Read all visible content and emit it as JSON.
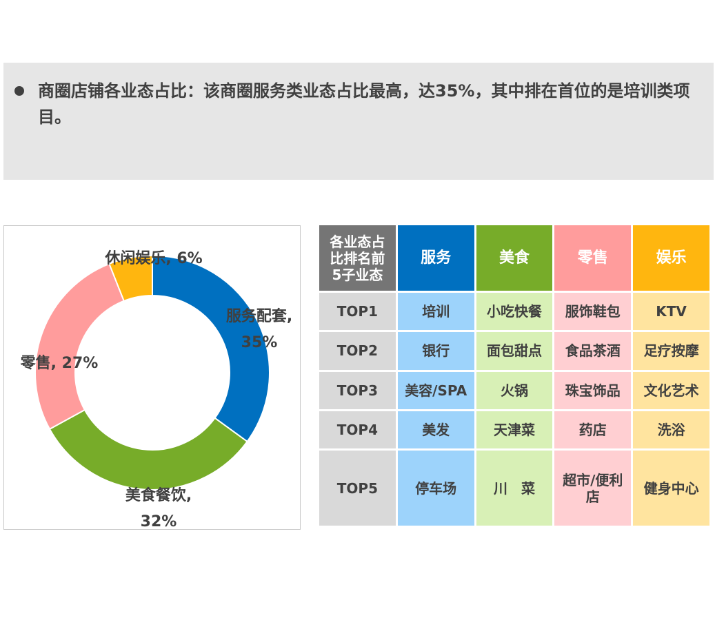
{
  "summary": {
    "text": "商圈店铺各业态占比：该商圈服务类业态占比最高，达35%，其中排在首位的是培训类项目。"
  },
  "chart_data": {
    "type": "pie",
    "donut": true,
    "slices": [
      {
        "name": "服务配套",
        "value": 35,
        "color": "#0070c0",
        "label_line1": "服务配套,",
        "label_line2": "35%"
      },
      {
        "name": "美食餐饮",
        "value": 32,
        "color": "#77ac29",
        "label_line1": "美食餐饮,",
        "label_line2": "32%"
      },
      {
        "name": "零售",
        "value": 27,
        "color": "#ff9c9c",
        "label_line1": "零售, 27%",
        "label_line2": ""
      },
      {
        "name": "休闲娱乐",
        "value": 6,
        "color": "#ffb60f",
        "label_line1": "休闲娱乐, 6%",
        "label_line2": ""
      }
    ]
  },
  "table": {
    "corner_header": "各业态占比排名前5子业态",
    "corner_lines": [
      "各业态占",
      "比排名前",
      "5子业态"
    ],
    "columns": [
      {
        "name": "服务",
        "color": "#0070c0"
      },
      {
        "name": "美食",
        "color": "#77ac29"
      },
      {
        "name": "零售",
        "color": "#ff9c9c"
      },
      {
        "name": "娱乐",
        "color": "#ffb60f"
      }
    ],
    "rows": [
      {
        "rank": "TOP1",
        "cells": [
          "培训",
          "小吃快餐",
          "服饰鞋包",
          "KTV"
        ]
      },
      {
        "rank": "TOP2",
        "cells": [
          "银行",
          "面包甜点",
          "食品茶酒",
          "足疗按摩"
        ]
      },
      {
        "rank": "TOP3",
        "cells": [
          "美容/SPA",
          "火锅",
          "珠宝饰品",
          "文化艺术"
        ]
      },
      {
        "rank": "TOP4",
        "cells": [
          "美发",
          "天津菜",
          "药店",
          "洗浴"
        ]
      },
      {
        "rank": "TOP5",
        "cells": [
          "停车场",
          "川　菜",
          "超市/便利店",
          "健身中心"
        ]
      }
    ]
  }
}
